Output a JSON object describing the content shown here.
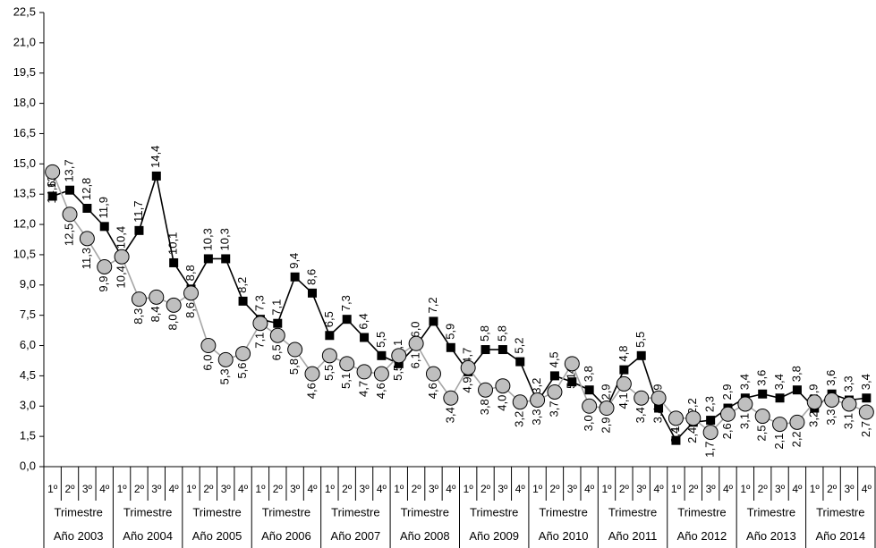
{
  "chart_data": {
    "type": "line",
    "categories": [
      "1º",
      "2º",
      "3º",
      "4º",
      "1º",
      "2º",
      "3º",
      "4º",
      "1º",
      "2º",
      "3º",
      "4º",
      "1º",
      "2º",
      "3º",
      "4º",
      "1º",
      "2º",
      "3º",
      "4º",
      "1º",
      "2º",
      "3º",
      "4º",
      "1º",
      "2º",
      "3º",
      "4º",
      "1º",
      "2º",
      "3º",
      "4º",
      "1º",
      "2º",
      "3º",
      "4º",
      "1º",
      "2º",
      "3º",
      "4º",
      "1º",
      "2º",
      "3º",
      "4º",
      "1º",
      "2º",
      "3º",
      "4º"
    ],
    "group_sublabels": [
      "Trimestre",
      "Trimestre",
      "Trimestre",
      "Trimestre",
      "Trimestre",
      "Trimestre",
      "Trimestre",
      "Trimestre",
      "Trimestre",
      "Trimestre",
      "Trimestre",
      "Trimestre"
    ],
    "group_labels": [
      "Año 2003",
      "Año 2004",
      "Año 2005",
      "Año 2006",
      "Año 2007",
      "Año 2008",
      "Año 2009",
      "Año 2010",
      "Año 2011",
      "Año 2012",
      "Año 2013",
      "Año 2014"
    ],
    "series": [
      {
        "color": "#000000",
        "marker": "square",
        "values": [
          13.4,
          13.7,
          12.8,
          11.9,
          10.4,
          11.7,
          14.4,
          10.1,
          8.8,
          10.3,
          10.3,
          8.2,
          7.3,
          7.1,
          9.4,
          8.6,
          6.5,
          7.3,
          6.4,
          5.5,
          5.1,
          6.0,
          7.2,
          5.9,
          4.7,
          5.8,
          5.8,
          5.2,
          3.2,
          4.5,
          4.2,
          3.8,
          2.9,
          4.8,
          5.5,
          2.9,
          1.3,
          2.2,
          2.3,
          2.9,
          3.4,
          3.6,
          3.4,
          3.8,
          2.9,
          3.6,
          3.3,
          3.4
        ],
        "value_labels": [
          "13,4",
          "13,7",
          "12,8",
          "11,9",
          "10,4",
          "11,7",
          "14,4",
          "10,1",
          "8,8",
          "10,3",
          "10,3",
          "8,2",
          "7,3",
          "7,1",
          "9,4",
          "8,6",
          "6,5",
          "7,3",
          "6,4",
          "5,5",
          "5,1",
          "6,0",
          "7,2",
          "5,9",
          "4,7",
          "5,8",
          "5,8",
          "5,2",
          "3,2",
          "4,5",
          "4,2",
          "3,8",
          "2,9",
          "4,8",
          "5,5",
          "2,9",
          "1,3",
          "2,2",
          "2,3",
          "2,9",
          "3,4",
          "3,6",
          "3,4",
          "3,8",
          "2,9",
          "3,6",
          "3,3",
          "3,4"
        ]
      },
      {
        "color": "#bfbfbf",
        "marker": "circle",
        "values": [
          14.6,
          12.5,
          11.3,
          9.9,
          10.4,
          8.3,
          8.4,
          8.0,
          8.6,
          6.0,
          5.3,
          5.6,
          7.1,
          6.5,
          5.8,
          4.6,
          5.5,
          5.1,
          4.7,
          4.6,
          5.5,
          6.1,
          4.6,
          3.4,
          4.9,
          3.8,
          4.0,
          3.2,
          3.3,
          3.7,
          5.1,
          3.0,
          2.9,
          4.1,
          3.4,
          3.4,
          2.4,
          2.4,
          1.7,
          2.6,
          3.1,
          2.5,
          2.1,
          2.2,
          3.2,
          3.3,
          3.1,
          2.7
        ],
        "value_labels": [
          "14,6",
          "12,5",
          "11,3",
          "9,9",
          "10,4",
          "8,3",
          "8,4",
          "8,0",
          "8,6",
          "6,0",
          "5,3",
          "5,6",
          "7,1",
          "6,5",
          "5,8",
          "4,6",
          "5,5",
          "5,1",
          "4,7",
          "4,6",
          "5,5",
          "6,1",
          "4,6",
          "3,4",
          "4,9",
          "3,8",
          "4,0",
          "3,2",
          "3,3",
          "3,7",
          "5,1",
          "3,0",
          "2,9",
          "4,1",
          "3,4",
          "3,4",
          "2,4",
          "2,4",
          "1,7",
          "2,6",
          "3,1",
          "2,5",
          "2,1",
          "2,2",
          "3,2",
          "3,3",
          "3,1",
          "2,7"
        ]
      }
    ],
    "ylim": [
      0,
      22.5
    ],
    "yticks": [
      {
        "value": 0,
        "label": "0,0"
      },
      {
        "value": 1.5,
        "label": "1,5"
      },
      {
        "value": 3,
        "label": "3,0"
      },
      {
        "value": 4.5,
        "label": "4,5"
      },
      {
        "value": 6,
        "label": "6,0"
      },
      {
        "value": 7.5,
        "label": "7,5"
      },
      {
        "value": 9,
        "label": "9,0"
      },
      {
        "value": 10.5,
        "label": "10,5"
      },
      {
        "value": 12,
        "label": "12,0"
      },
      {
        "value": 13.5,
        "label": "13,5"
      },
      {
        "value": 15,
        "label": "15,0"
      },
      {
        "value": 16.5,
        "label": "16,5"
      },
      {
        "value": 18,
        "label": "18,0"
      },
      {
        "value": 19.5,
        "label": "19,5"
      },
      {
        "value": 21,
        "label": "21,0"
      },
      {
        "value": 22.5,
        "label": "22,5"
      }
    ],
    "grid": false
  }
}
